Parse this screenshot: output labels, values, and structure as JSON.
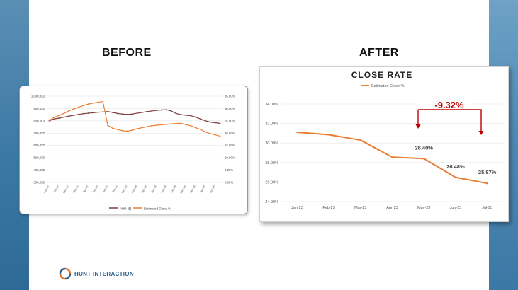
{
  "labels": {
    "before": "BEFORE",
    "after": "AFTER"
  },
  "brand": {
    "name": "HUNT INTERACTION"
  },
  "colors": {
    "series_orange": "#ed7d31",
    "callout_red": "#c00000",
    "side_blue": "#3b78a4"
  },
  "chart_data": [
    {
      "type": "line",
      "title": "",
      "categories": [
        "Aug-22",
        "Sep-22",
        "Oct-22",
        "Nov-22",
        "Dec-22",
        "Jan-23",
        "Feb-23",
        "Mar-23",
        "Apr-23",
        "May-23",
        "Jun-23",
        "Jul-23",
        "Aug-23",
        "Sep-23",
        "Oct-23",
        "Nov-23",
        "Dec-23",
        "Jan-24",
        "Feb-24",
        "Mar-24",
        "Apr-24",
        "May-24",
        "Jun-24",
        "Jul-24",
        "Aug-24",
        "Sep-24",
        "Oct-24",
        "Nov-24",
        "Dec-24",
        "Jan-25",
        "Feb-25",
        "Mar-25",
        "Apr-25",
        "May-25",
        "Jun-25",
        "Jul-25"
      ],
      "y_left": {
        "ticks": [
          "300,000",
          "400,000",
          "500,000",
          "600,000",
          "700,000",
          "800,000",
          "900,000",
          "1,000,000"
        ],
        "range": [
          300000,
          1000000
        ]
      },
      "y_right": {
        "ticks": [
          "0.00%",
          "5.00%",
          "10.00%",
          "15.00%",
          "20.00%",
          "25.00%",
          "30.00%",
          "35.00%"
        ],
        "range": [
          0,
          35
        ]
      },
      "series": [
        {
          "name": "ARR ($)",
          "axis": "left",
          "values": [
            800000,
            815000,
            822000,
            830000,
            838000,
            845000,
            852000,
            858000,
            862000,
            866000,
            870000,
            872000,
            875000,
            868000,
            860000,
            855000,
            852000,
            855000,
            862000,
            868000,
            875000,
            880000,
            885000,
            888000,
            890000,
            880000,
            860000,
            850000,
            845000,
            842000,
            830000,
            815000,
            800000,
            790000,
            785000,
            780000
          ]
        },
        {
          "name": "Estimated Close %",
          "axis": "right",
          "values": [
            25.2,
            26.4,
            27.2,
            28.0,
            29.0,
            29.8,
            30.5,
            31.2,
            31.8,
            32.2,
            32.5,
            32.8,
            23.2,
            22.0,
            21.5,
            21.0,
            20.8,
            21.2,
            21.8,
            22.2,
            22.6,
            23.0,
            23.2,
            23.4,
            23.6,
            23.8,
            23.9,
            24.0,
            23.5,
            23.0,
            22.2,
            21.5,
            20.5,
            19.8,
            19.3,
            18.8
          ]
        }
      ]
    },
    {
      "type": "line",
      "title": "CLOSE RATE",
      "legend": "Estimated Close %",
      "legend_position": "top-center",
      "categories": [
        "Jan-23",
        "Feb-23",
        "Mar-23",
        "Apr-23",
        "May-23",
        "Jun-23",
        "Jul-23"
      ],
      "series": [
        {
          "name": "Estimated Close %",
          "values": [
            31.1,
            30.85,
            30.3,
            28.55,
            28.4,
            26.48,
            25.87
          ]
        }
      ],
      "ylim": [
        24,
        34
      ],
      "y_ticks": [
        "24.00%",
        "26.00%",
        "28.00%",
        "30.00%",
        "32.00%",
        "34.00%"
      ],
      "data_labels": [
        {
          "index": 4,
          "text": "28.40%"
        },
        {
          "index": 5,
          "text": "26.48%"
        },
        {
          "index": 6,
          "text": "25.87%"
        }
      ],
      "annotation": "-9.32%",
      "gridlines": true
    }
  ]
}
